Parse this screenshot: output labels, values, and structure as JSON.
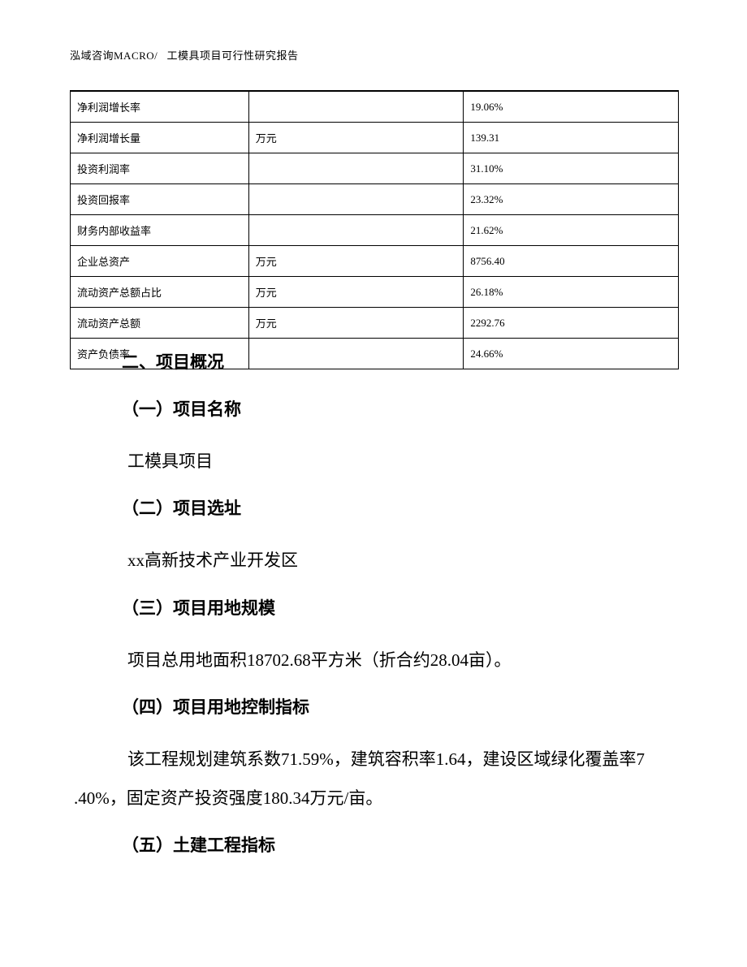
{
  "header": {
    "left": "泓域咨询MACRO/",
    "right": "工模具项目可行性研究报告"
  },
  "table": {
    "rows": [
      {
        "c1": "净利润增长率",
        "c2": "",
        "c3": "19.06%"
      },
      {
        "c1": "净利润增长量",
        "c2": "万元",
        "c3": "139.31"
      },
      {
        "c1": "投资利润率",
        "c2": "",
        "c3": "31.10%"
      },
      {
        "c1": "投资回报率",
        "c2": "",
        "c3": "23.32%"
      },
      {
        "c1": "财务内部收益率",
        "c2": "",
        "c3": "21.62%"
      },
      {
        "c1": "企业总资产",
        "c2": "万元",
        "c3": "8756.40"
      },
      {
        "c1": "流动资产总额占比",
        "c2": "万元",
        "c3": "26.18%"
      },
      {
        "c1": "流动资产总额",
        "c2": "万元",
        "c3": "2292.76"
      },
      {
        "c1": "资产负债率",
        "c2": "",
        "c3": "24.66%"
      }
    ]
  },
  "sections": {
    "h2_1": "二、项目概况",
    "h3_1": "（一）项目名称",
    "p1": "工模具项目",
    "h3_2": "（二）项目选址",
    "p2": "xx高新技术产业开发区",
    "h3_3": "（三）项目用地规模",
    "p3": "项目总用地面积18702.68平方米（折合约28.04亩）。",
    "h3_4": "（四）项目用地控制指标",
    "p4_line1": "该工程规划建筑系数71.59%，建筑容积率1.64，建设区域绿化覆盖率7",
    "p4_line2": ".40%，固定资产投资强度180.34万元/亩。",
    "h3_5": "（五）土建工程指标"
  }
}
